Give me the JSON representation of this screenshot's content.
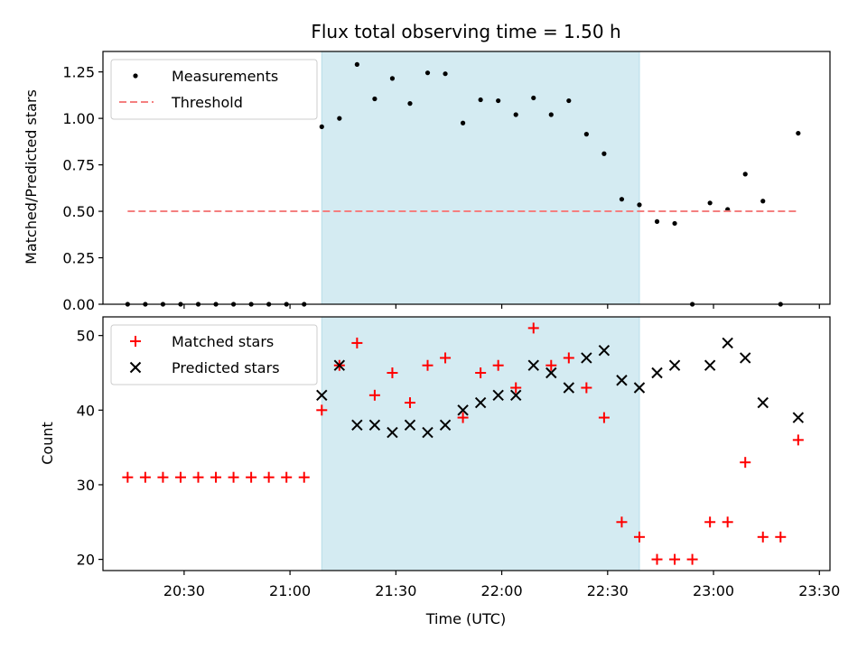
{
  "chart_data": [
    {
      "type": "scatter",
      "title": "Flux total observing time = 1.50 h",
      "ylabel": "Matched/Predicted stars",
      "ylim": [
        0,
        1.36
      ],
      "yticks": [
        0.0,
        0.25,
        0.5,
        0.75,
        1.0,
        1.25
      ],
      "ytick_labels": [
        "0.00",
        "0.25",
        "0.50",
        "0.75",
        "1.00",
        "1.25"
      ],
      "xlim": [
        "20:07",
        "23:33"
      ],
      "legend": "top-left",
      "shaded_interval": [
        "21:09",
        "22:39"
      ],
      "shaded_color": "#d4ebf2",
      "series": [
        {
          "name": "Measurements",
          "marker": "dot",
          "color": "#000000",
          "x": [
            "20:14",
            "20:19",
            "20:24",
            "20:29",
            "20:34",
            "20:39",
            "20:44",
            "20:49",
            "20:54",
            "20:59",
            "21:04",
            "21:09",
            "21:14",
            "21:19",
            "21:24",
            "21:29",
            "21:34",
            "21:39",
            "21:44",
            "21:49",
            "21:54",
            "21:59",
            "22:04",
            "22:09",
            "22:14",
            "22:19",
            "22:24",
            "22:29",
            "22:34",
            "22:39",
            "22:44",
            "22:49",
            "22:54",
            "22:59",
            "23:04",
            "23:09",
            "23:14",
            "23:19",
            "23:24"
          ],
          "y": [
            0,
            0,
            0,
            0,
            0,
            0,
            0,
            0,
            0,
            0,
            0,
            0.955,
            1.0,
            1.29,
            1.105,
            1.215,
            1.08,
            1.245,
            1.24,
            0.975,
            1.1,
            1.095,
            1.02,
            1.11,
            1.02,
            1.095,
            0.915,
            0.81,
            0.565,
            0.535,
            0.445,
            0.435,
            0,
            0.545,
            0.51,
            0.7,
            0.555,
            0,
            0.92
          ]
        },
        {
          "name": "Threshold",
          "marker": "dashed-line",
          "color": "#f47f7f",
          "x": [
            "20:14",
            "23:24"
          ],
          "y": [
            0.5,
            0.5
          ]
        }
      ]
    },
    {
      "type": "scatter",
      "xlabel": "Time (UTC)",
      "ylabel": "Count",
      "ylim": [
        18.5,
        52.5
      ],
      "yticks": [
        20,
        30,
        40,
        50
      ],
      "ytick_labels": [
        "20",
        "30",
        "40",
        "50"
      ],
      "xlim": [
        "20:07",
        "23:33"
      ],
      "xticks": [
        "20:30",
        "21:00",
        "21:30",
        "22:00",
        "22:30",
        "23:00",
        "23:30"
      ],
      "xtick_labels": [
        "20:30",
        "21:00",
        "21:30",
        "22:00",
        "22:30",
        "23:00",
        "23:30"
      ],
      "legend": "top-left",
      "shaded_interval": [
        "21:09",
        "22:39"
      ],
      "shaded_color": "#d4ebf2",
      "series": [
        {
          "name": "Matched stars",
          "marker": "plus",
          "color": "#ff0000",
          "x": [
            "20:14",
            "20:19",
            "20:24",
            "20:29",
            "20:34",
            "20:39",
            "20:44",
            "20:49",
            "20:54",
            "20:59",
            "21:04",
            "21:09",
            "21:14",
            "21:19",
            "21:24",
            "21:29",
            "21:34",
            "21:39",
            "21:44",
            "21:49",
            "21:54",
            "21:59",
            "22:04",
            "22:09",
            "22:14",
            "22:19",
            "22:24",
            "22:29",
            "22:34",
            "22:39",
            "22:44",
            "22:49",
            "22:54",
            "22:59",
            "23:04",
            "23:09",
            "23:14",
            "23:19",
            "23:24"
          ],
          "y": [
            31,
            31,
            31,
            31,
            31,
            31,
            31,
            31,
            31,
            31,
            31,
            40,
            46,
            49,
            42,
            45,
            41,
            46,
            47,
            39,
            45,
            46,
            43,
            51,
            46,
            47,
            43,
            39,
            25,
            23,
            20,
            20,
            20,
            25,
            25,
            33,
            23,
            23,
            36
          ]
        },
        {
          "name": "Predicted stars",
          "marker": "x",
          "color": "#000000",
          "x": [
            "21:09",
            "21:14",
            "21:19",
            "21:24",
            "21:29",
            "21:34",
            "21:39",
            "21:44",
            "21:49",
            "21:54",
            "21:59",
            "22:04",
            "22:09",
            "22:14",
            "22:19",
            "22:24",
            "22:29",
            "22:34",
            "22:39",
            "22:44",
            "22:49",
            "22:59",
            "23:04",
            "23:09",
            "23:14",
            "23:24"
          ],
          "y": [
            42,
            46,
            38,
            38,
            37,
            38,
            37,
            38,
            40,
            41,
            42,
            42,
            46,
            45,
            43,
            47,
            48,
            44,
            43,
            45,
            46,
            46,
            49,
            47,
            41,
            39
          ]
        }
      ]
    }
  ]
}
